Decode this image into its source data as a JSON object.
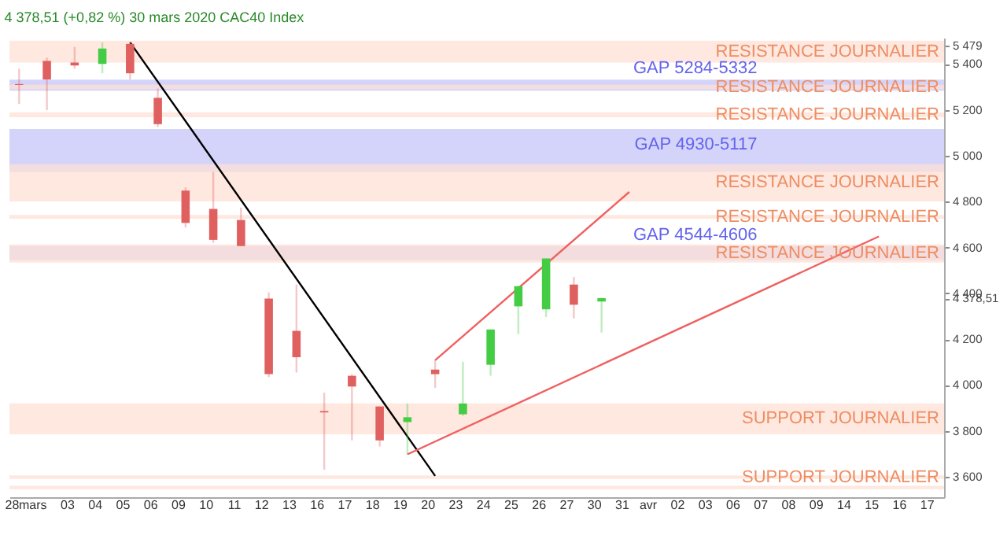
{
  "chart_data": {
    "type": "candlestick",
    "title": "4 378,51 (+0,82 %) 30 mars 2020 CAC40 Index",
    "categories": [
      "28",
      "mars",
      "03",
      "04",
      "05",
      "06",
      "09",
      "10",
      "11",
      "12",
      "13",
      "16",
      "17",
      "18",
      "19",
      "20",
      "23",
      "24",
      "25",
      "26",
      "27",
      "30",
      "31",
      "avr",
      "02",
      "03",
      "06",
      "07",
      "08",
      "09",
      "14",
      "15",
      "16",
      "17"
    ],
    "ohlc": [
      [
        5313,
        5380,
        5226,
        5309
      ],
      [
        5414,
        5428,
        5199,
        5333
      ],
      [
        5407,
        5475,
        5380,
        5394
      ],
      [
        5401,
        5495,
        5360,
        5468
      ],
      [
        5488,
        5495,
        5333,
        5360
      ],
      [
        5253,
        5293,
        5125,
        5138
      ],
      [
        4848,
        4862,
        4687,
        4707
      ],
      [
        4768,
        4929,
        4620,
        4633
      ],
      [
        4720,
        4774,
        4606,
        4606
      ],
      [
        4377,
        4404,
        4034,
        4047
      ],
      [
        4236,
        4438,
        4054,
        4121
      ],
      [
        3886,
        3966,
        3630,
        3880
      ],
      [
        4040,
        4047,
        3758,
        3993
      ],
      [
        3906,
        3906,
        3731,
        3758
      ],
      [
        3838,
        3919,
        3697,
        3859
      ],
      [
        4067,
        4108,
        3987,
        4047
      ],
      [
        3872,
        4101,
        3865,
        3919
      ],
      [
        4088,
        4242,
        4040,
        4242
      ],
      [
        4343,
        4431,
        4222,
        4431
      ],
      [
        4330,
        4552,
        4296,
        4552
      ],
      [
        4438,
        4471,
        4290,
        4350
      ],
      [
        4364,
        4379,
        4229,
        4379
      ],
      null,
      null,
      null,
      null,
      null,
      null,
      null,
      null,
      null,
      null,
      null,
      null
    ],
    "colors": [
      "#e06060",
      "#e06060",
      "#e06060",
      "#44cc44",
      "#e06060",
      "#e06060",
      "#e06060",
      "#e06060",
      "#e06060",
      "#e06060",
      "#e06060",
      "#e06060",
      "#e06060",
      "#e06060",
      "#44cc44",
      "#e06060",
      "#44cc44",
      "#44cc44",
      "#44cc44",
      "#44cc44",
      "#e06060",
      "#44cc44",
      null,
      null,
      null,
      null,
      null,
      null,
      null,
      null,
      null,
      null,
      null,
      null
    ],
    "series": [
      {
        "type": "line",
        "color": "#000000",
        "x": [
          "05",
          "20"
        ],
        "values": [
          5495,
          3603
        ]
      },
      {
        "type": "line",
        "color": "#f06060",
        "x": [
          "20",
          "31"
        ],
        "values": [
          4108,
          4842
        ]
      },
      {
        "type": "line",
        "color": "#f06060",
        "x": [
          "19",
          "15"
        ],
        "values": [
          3697,
          4648
        ]
      }
    ],
    "bands": [
      {
        "axis": "y",
        "from": 5407,
        "to": 5502,
        "label": "RESISTANCE JOURNALIER",
        "color": "#fde0d4"
      },
      {
        "axis": "y",
        "from": 5284,
        "to": 5332,
        "label": "GAP 5284-5332",
        "color": "#c6c6fa"
      },
      {
        "axis": "y",
        "from": 5290,
        "to": 5310,
        "label": "RESISTANCE JOURNALIER",
        "color": "#fde0d4"
      },
      {
        "axis": "y",
        "from": 5168,
        "to": 5190,
        "label": "RESISTANCE JOURNALIER",
        "color": "#fde0d4"
      },
      {
        "axis": "y",
        "from": 4930,
        "to": 5117,
        "label": "GAP 4930-5117",
        "color": "#c6c6fa"
      },
      {
        "axis": "y",
        "from": 4801,
        "to": 4963,
        "label": "RESISTANCE JOURNALIER",
        "color": "#fde0d4"
      },
      {
        "axis": "y",
        "from": 4725,
        "to": 4742,
        "label": "RESISTANCE JOURNALIER",
        "color": "#fde0d4"
      },
      {
        "axis": "y",
        "from": 4544,
        "to": 4606,
        "label": "GAP 4544-4606",
        "color": "#c6c6fa"
      },
      {
        "axis": "y",
        "from": 4534,
        "to": 4613,
        "label": "RESISTANCE JOURNALIER",
        "color": "#fde0d4"
      },
      {
        "axis": "y",
        "from": 3785,
        "to": 3919,
        "label": "SUPPORT JOURNALIER",
        "color": "#fde0d4"
      },
      {
        "axis": "y",
        "from": 3590,
        "to": 3605,
        "label": "SUPPORT JOURNALIER",
        "color": "#fde0d4"
      },
      {
        "axis": "y",
        "from": 3545,
        "to": 3560,
        "color": "#fde0d4"
      }
    ],
    "ylim": [
      3510,
      5515
    ],
    "yticks": [
      {
        "value": 3600,
        "label": "3 600"
      },
      {
        "value": 3800,
        "label": "3 800"
      },
      {
        "value": 4000,
        "label": "4 000"
      },
      {
        "value": 4200,
        "label": "4 200"
      },
      {
        "value": 4378.51,
        "label": "4 378,51"
      },
      {
        "value": 4400,
        "label": "4 400"
      },
      {
        "value": 4600,
        "label": "4 600"
      },
      {
        "value": 4800,
        "label": "4 800"
      },
      {
        "value": 5000,
        "label": "5 000"
      },
      {
        "value": 5200,
        "label": "5 200"
      },
      {
        "value": 5400,
        "label": "5 400"
      },
      {
        "value": 5479,
        "label": "5 479"
      }
    ],
    "grid": false
  }
}
